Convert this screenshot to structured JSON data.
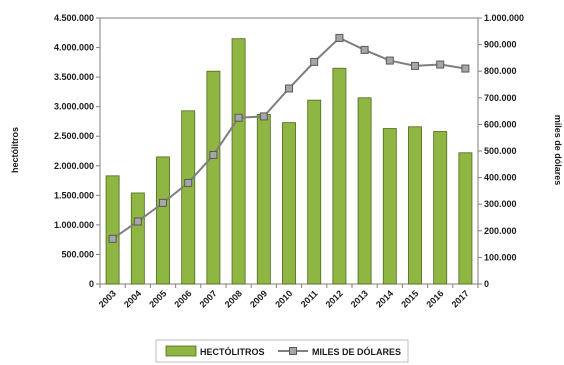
{
  "chart_data": {
    "type": "bar",
    "categories": [
      "2003",
      "2004",
      "2005",
      "2006",
      "2007",
      "2008",
      "2009",
      "2010",
      "2011",
      "2012",
      "2013",
      "2014",
      "2015",
      "2016",
      "2017"
    ],
    "series": [
      {
        "name": "HECTÓLITROS",
        "type": "bar",
        "axis": "left",
        "color": "#8fb543",
        "values": [
          1830000,
          1540000,
          2150000,
          2930000,
          3600000,
          4150000,
          2870000,
          2730000,
          3110000,
          3650000,
          3150000,
          2630000,
          2660000,
          2580000,
          2220000
        ]
      },
      {
        "name": "MILES DE DÓLARES",
        "type": "line",
        "axis": "right",
        "color": "#7f7f7f",
        "values": [
          170000,
          235000,
          305000,
          380000,
          485000,
          625000,
          630000,
          735000,
          835000,
          925000,
          880000,
          840000,
          820000,
          825000,
          810000
        ]
      }
    ],
    "ylabel": "hectólitros",
    "y2label": "miles de dólares",
    "ylim": [
      0,
      4500000
    ],
    "y2lim": [
      0,
      1000000
    ],
    "yticks": [
      "0",
      "500.000",
      "1.000.000",
      "1.500.000",
      "2.000.000",
      "2.500.000",
      "3.000.000",
      "3.500.000",
      "4.000.000",
      "4.500.000"
    ],
    "y2ticks": [
      "0",
      "100.000",
      "200.000",
      "300.000",
      "400.000",
      "500.000",
      "600.000",
      "700.000",
      "800.000",
      "900.000",
      "1.000.000"
    ],
    "grid": false,
    "legend": "bottom"
  }
}
